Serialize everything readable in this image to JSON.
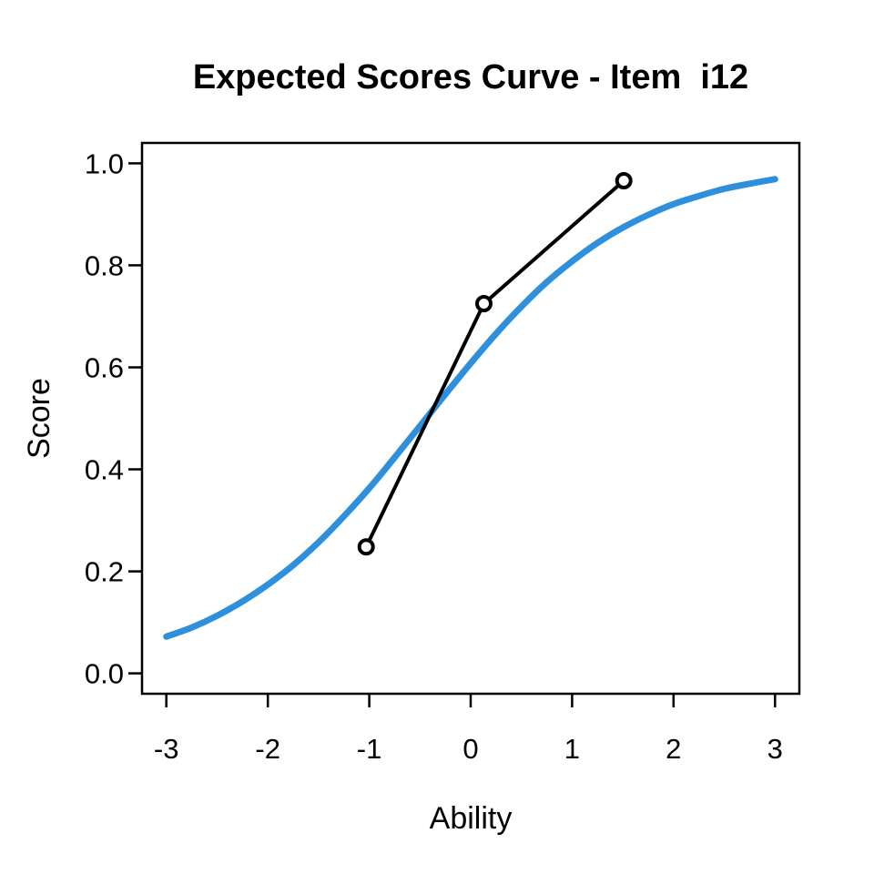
{
  "title": "Expected Scores Curve - Item  i12",
  "colors": {
    "background": "#ffffff",
    "axis": "#000000",
    "model_curve": "#2e8fdd",
    "observed_line": "#000000",
    "observed_point_fill": "#ffffff"
  },
  "chart_data": {
    "type": "line",
    "title": "Expected Scores Curve - Item  i12",
    "xlabel": "Ability",
    "ylabel": "Score",
    "xlim": [
      -3,
      3
    ],
    "ylim": [
      0,
      1
    ],
    "axis_padding_fraction": 0.04,
    "grid": false,
    "legend": "none",
    "x_ticks": [
      -3,
      -2,
      -1,
      0,
      1,
      2,
      3
    ],
    "x_tick_labels": [
      "-3",
      "-2",
      "-1",
      "0",
      "1",
      "2",
      "3"
    ],
    "y_ticks": [
      0.0,
      0.2,
      0.4,
      0.6,
      0.8,
      1.0
    ],
    "y_tick_labels": [
      "0.0",
      "0.2",
      "0.4",
      "0.6",
      "0.8",
      "1.0"
    ],
    "series": [
      {
        "name": "expected-score-model-curve",
        "style": "smooth-line",
        "color": "#2e8fdd",
        "stroke_width": 7,
        "x": [
          -3,
          -2.75,
          -2.5,
          -2.25,
          -2,
          -1.75,
          -1.5,
          -1.25,
          -1,
          -0.75,
          -0.5,
          -0.25,
          0,
          0.25,
          0.5,
          0.75,
          1,
          1.25,
          1.5,
          1.75,
          2,
          2.25,
          2.5,
          2.75,
          3
        ],
        "y": [
          0.072,
          0.09,
          0.113,
          0.141,
          0.174,
          0.212,
          0.257,
          0.308,
          0.363,
          0.423,
          0.485,
          0.547,
          0.608,
          0.666,
          0.719,
          0.767,
          0.808,
          0.844,
          0.874,
          0.899,
          0.92,
          0.936,
          0.95,
          0.96,
          0.969
        ]
      },
      {
        "name": "observed-group-scores",
        "style": "line-open-points",
        "color": "#000000",
        "stroke_width": 4,
        "point_radius": 7.5,
        "point_stroke_width": 4,
        "x": [
          -1.03,
          0.13,
          1.51
        ],
        "y": [
          0.248,
          0.725,
          0.966
        ]
      }
    ]
  }
}
